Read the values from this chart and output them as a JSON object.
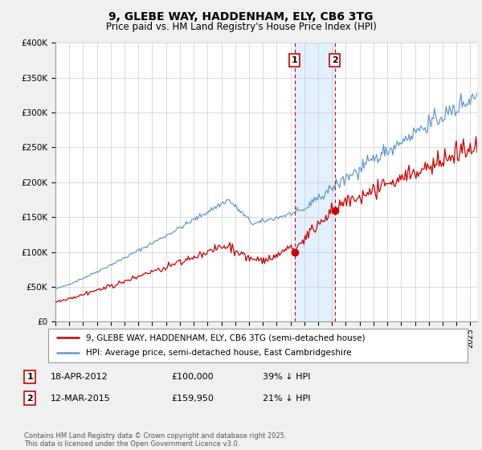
{
  "title": "9, GLEBE WAY, HADDENHAM, ELY, CB6 3TG",
  "subtitle": "Price paid vs. HM Land Registry's House Price Index (HPI)",
  "ylim": [
    0,
    400000
  ],
  "yticks": [
    0,
    50000,
    100000,
    150000,
    200000,
    250000,
    300000,
    350000,
    400000
  ],
  "ytick_labels": [
    "£0",
    "£50K",
    "£100K",
    "£150K",
    "£200K",
    "£250K",
    "£300K",
    "£350K",
    "£400K"
  ],
  "legend_line1": "9, GLEBE WAY, HADDENHAM, ELY, CB6 3TG (semi-detached house)",
  "legend_line2": "HPI: Average price, semi-detached house, East Cambridgeshire",
  "footer": "Contains HM Land Registry data © Crown copyright and database right 2025.\nThis data is licensed under the Open Government Licence v3.0.",
  "transaction1_date": "18-APR-2012",
  "transaction1_price": "£100,000",
  "transaction1_hpi": "39% ↓ HPI",
  "transaction1_year": 2012.29,
  "transaction1_price_val": 100000,
  "transaction2_date": "12-MAR-2015",
  "transaction2_price": "£159,950",
  "transaction2_hpi": "21% ↓ HPI",
  "transaction2_year": 2015.19,
  "transaction2_price_val": 159950,
  "red_line_color": "#cc0000",
  "blue_line_color": "#6699cc",
  "shade_color": "#ddeeff",
  "bg_color": "#f0f0f0",
  "plot_bg_color": "#ffffff",
  "grid_color": "#cccccc",
  "xlim_start": 1995,
  "xlim_end": 2025.5
}
